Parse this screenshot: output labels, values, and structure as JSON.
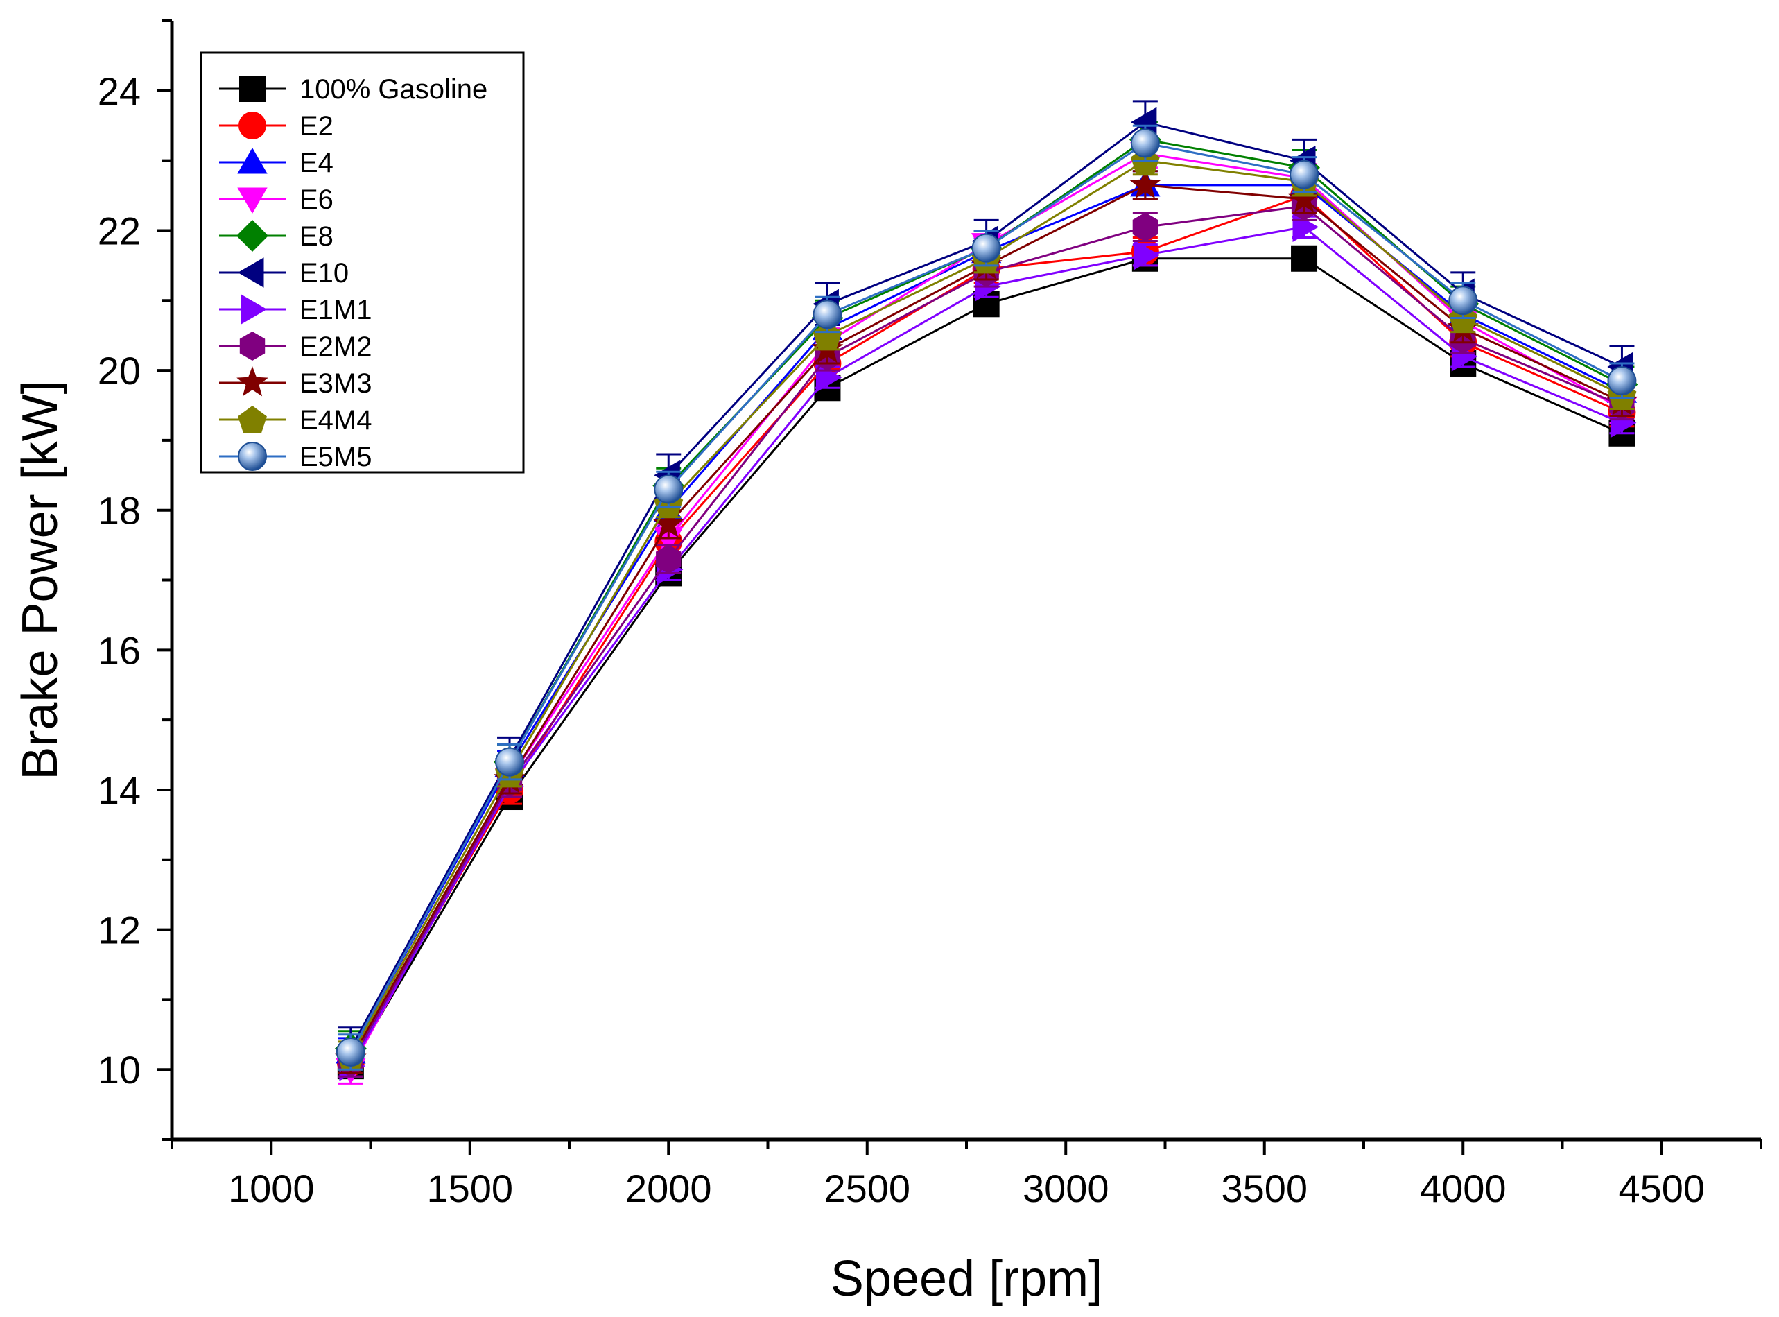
{
  "chart_data": {
    "type": "line",
    "xlabel": "Speed [rpm]",
    "ylabel": "Brake Power [kW]",
    "xlim": [
      750,
      4750
    ],
    "ylim": [
      9,
      25
    ],
    "xticks": [
      1000,
      1500,
      2000,
      2500,
      3000,
      3500,
      4000,
      4500
    ],
    "yticks": [
      10,
      12,
      14,
      16,
      18,
      20,
      22,
      24
    ],
    "x": [
      1200,
      1600,
      2000,
      2400,
      2800,
      3200,
      3600,
      4000,
      4400
    ],
    "legend_position": "top-left",
    "series": [
      {
        "name": "100% Gasoline",
        "color": "#000000",
        "marker": "square",
        "values": [
          10.05,
          13.9,
          17.1,
          19.75,
          20.95,
          21.6,
          21.6,
          20.1,
          19.1
        ],
        "error": 0.15
      },
      {
        "name": "E2",
        "color": "#ff0000",
        "marker": "circle",
        "values": [
          10.1,
          14.0,
          17.55,
          20.1,
          21.45,
          21.7,
          22.5,
          20.4,
          19.4
        ],
        "error": 0.2
      },
      {
        "name": "E4",
        "color": "#0000ff",
        "marker": "triangle-up",
        "values": [
          10.25,
          14.35,
          18.0,
          20.6,
          21.7,
          22.65,
          22.65,
          20.8,
          19.7
        ],
        "error": 0.2
      },
      {
        "name": "E6",
        "color": "#ff00ff",
        "marker": "triangle-down",
        "values": [
          10.0,
          14.15,
          17.6,
          20.4,
          21.8,
          23.1,
          22.75,
          20.7,
          19.45
        ],
        "error": 0.2
      },
      {
        "name": "E8",
        "color": "#008000",
        "marker": "diamond",
        "values": [
          10.3,
          14.4,
          18.35,
          20.75,
          21.75,
          23.3,
          22.9,
          20.95,
          19.8
        ],
        "error": 0.25
      },
      {
        "name": "E10",
        "color": "#000080",
        "marker": "triangle-left",
        "values": [
          10.3,
          14.45,
          18.5,
          20.95,
          21.85,
          23.55,
          23.0,
          21.1,
          20.05
        ],
        "error": 0.3
      },
      {
        "name": "E1M1",
        "color": "#8000ff",
        "marker": "triangle-right",
        "values": [
          10.05,
          14.05,
          17.15,
          19.9,
          21.2,
          21.65,
          22.05,
          20.2,
          19.25
        ],
        "error": 0.15
      },
      {
        "name": "E2M2",
        "color": "#800080",
        "marker": "hexagon",
        "values": [
          10.1,
          14.1,
          17.3,
          20.2,
          21.4,
          22.05,
          22.35,
          20.45,
          19.5
        ],
        "error": 0.2
      },
      {
        "name": "E3M3",
        "color": "#800000",
        "marker": "star",
        "values": [
          10.15,
          14.15,
          17.8,
          20.3,
          21.5,
          22.65,
          22.45,
          20.6,
          19.55
        ],
        "error": 0.2
      },
      {
        "name": "E4M4",
        "color": "#808000",
        "marker": "pentagon",
        "values": [
          10.2,
          14.25,
          18.1,
          20.5,
          21.6,
          23.0,
          22.7,
          20.75,
          19.65
        ],
        "error": 0.2
      },
      {
        "name": "E5M5",
        "color": "#2e6ec4",
        "marker": "sphere",
        "values": [
          10.25,
          14.4,
          18.3,
          20.8,
          21.75,
          23.25,
          22.8,
          21.0,
          19.85
        ],
        "error": 0.25
      }
    ]
  }
}
